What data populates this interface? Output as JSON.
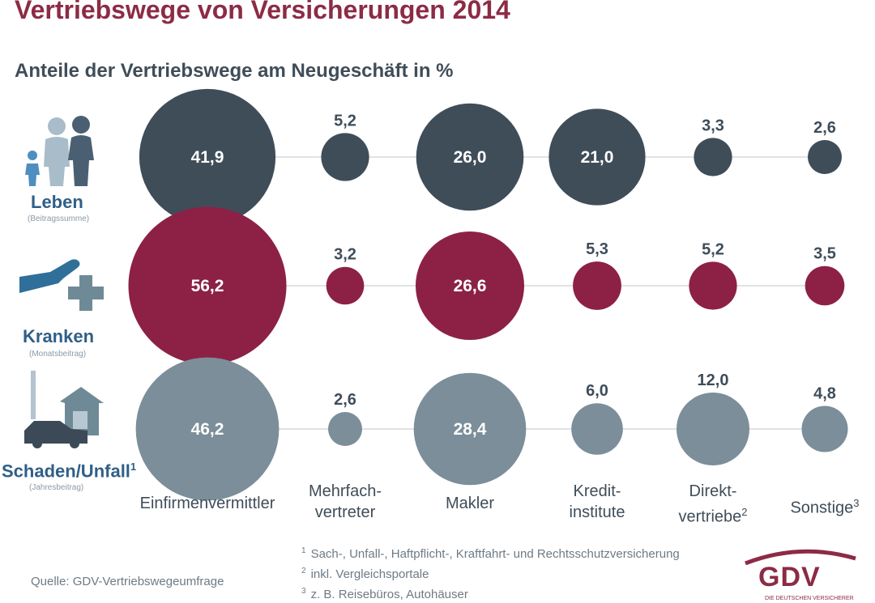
{
  "title": "Vertriebswege von Versicherungen 2014",
  "subtitle": "Anteile der Vertriebswege am Neugeschäft in %",
  "categories": [
    {
      "main": "Einfirmenvermittler",
      "line2": "",
      "sup": ""
    },
    {
      "main": "Mehrfach-",
      "line2": "vertreter",
      "sup": ""
    },
    {
      "main": "Makler",
      "line2": "",
      "sup": ""
    },
    {
      "main": "Kredit-",
      "line2": "institute",
      "sup": ""
    },
    {
      "main": "Direkt-",
      "line2": "vertriebe",
      "sup": "2"
    },
    {
      "main": "Sonstige",
      "line2": "",
      "sup": "3"
    }
  ],
  "rows": [
    {
      "label": "Leben",
      "sup": "",
      "sub": "(Beitragssumme)",
      "icon": "family-icon"
    },
    {
      "label": "Kranken",
      "sup": "",
      "sub": "(Monatsbeitrag)",
      "icon": "health-care-icon"
    },
    {
      "label": "Schaden/Unfall",
      "sup": "1",
      "sub": "(Jahresbeitrag)",
      "icon": "house-car-icon"
    }
  ],
  "chart_data": {
    "type": "bubble",
    "title": "Vertriebswege von Versicherungen 2014",
    "subtitle": "Anteile der Vertriebswege am Neugeschäft in %",
    "categories": [
      "Einfirmenvermittler",
      "Mehrfachvertreter",
      "Makler",
      "Kreditinstitute",
      "Direktvertriebe",
      "Sonstige"
    ],
    "series": [
      {
        "name": "Leben",
        "unit_note": "(Beitragssumme)",
        "color": "#3f4d59",
        "values": [
          41.9,
          5.2,
          26.0,
          21.0,
          3.3,
          2.6
        ],
        "labels": [
          "41,9",
          "5,2",
          "26,0",
          "21,0",
          "3,3",
          "2,6"
        ]
      },
      {
        "name": "Kranken",
        "unit_note": "(Monatsbeitrag)",
        "color": "#8c2145",
        "values": [
          56.2,
          3.2,
          26.6,
          5.3,
          5.2,
          3.5
        ],
        "labels": [
          "56,2",
          "3,2",
          "26,6",
          "5,3",
          "5,2",
          "3,5"
        ]
      },
      {
        "name": "Schaden/Unfall",
        "unit_note": "(Jahresbeitrag)",
        "color": "#7b8e99",
        "values": [
          46.2,
          2.6,
          28.4,
          6.0,
          12.0,
          4.8
        ],
        "labels": [
          "46,2",
          "2,6",
          "28,4",
          "6,0",
          "12,0",
          "4,8"
        ]
      }
    ]
  },
  "footnotes": [
    {
      "num": "1",
      "text": "Sach-, Unfall-, Haftpflicht-, Kraftfahrt- und Rechtsschutzversicherung"
    },
    {
      "num": "2",
      "text": "inkl. Vergleichsportale"
    },
    {
      "num": "3",
      "text": "z. B. Reisebüros, Autohäuser"
    }
  ],
  "source": "Quelle: GDV-Vertriebswegeumfrage",
  "logo": {
    "text": "GDV",
    "sub": "DIE DEUTSCHEN VERSICHERER"
  },
  "colors": {
    "title": "#8c2b45",
    "text": "#3f4d59",
    "row_label": "#2f5f87",
    "line": "#d5d9dc"
  }
}
